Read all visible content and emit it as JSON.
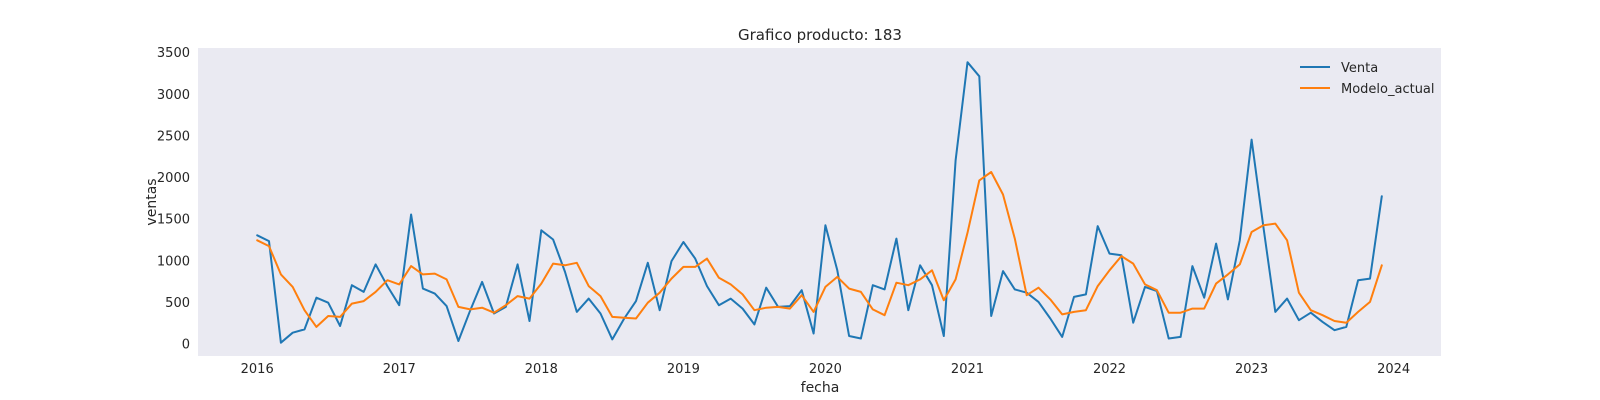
{
  "chart_data": {
    "type": "line",
    "title": "Grafico producto: 183",
    "xlabel": "fecha",
    "ylabel": "ventas",
    "x_ticks": [
      "2016",
      "2017",
      "2018",
      "2019",
      "2020",
      "2021",
      "2022",
      "2023",
      "2024"
    ],
    "y_ticks": [
      "0",
      "500",
      "1000",
      "1500",
      "2000",
      "2500",
      "3000",
      "3500"
    ],
    "xlim": [
      "2015-08-01",
      "2024-05-01"
    ],
    "ylim": [
      -150,
      3550
    ],
    "grid": false,
    "legend_position": "top-right",
    "x": [
      "2016-01",
      "2016-02",
      "2016-03",
      "2016-04",
      "2016-05",
      "2016-06",
      "2016-07",
      "2016-08",
      "2016-09",
      "2016-10",
      "2016-11",
      "2016-12",
      "2017-01",
      "2017-02",
      "2017-03",
      "2017-04",
      "2017-05",
      "2017-06",
      "2017-07",
      "2017-08",
      "2017-09",
      "2017-10",
      "2017-11",
      "2017-12",
      "2018-01",
      "2018-02",
      "2018-03",
      "2018-04",
      "2018-05",
      "2018-06",
      "2018-07",
      "2018-08",
      "2018-09",
      "2018-10",
      "2018-11",
      "2018-12",
      "2019-01",
      "2019-02",
      "2019-03",
      "2019-04",
      "2019-05",
      "2019-06",
      "2019-07",
      "2019-08",
      "2019-09",
      "2019-10",
      "2019-11",
      "2019-12",
      "2020-01",
      "2020-02",
      "2020-03",
      "2020-04",
      "2020-05",
      "2020-06",
      "2020-07",
      "2020-08",
      "2020-09",
      "2020-10",
      "2020-11",
      "2020-12",
      "2021-01",
      "2021-02",
      "2021-03",
      "2021-04",
      "2021-05",
      "2021-06",
      "2021-07",
      "2021-08",
      "2021-09",
      "2021-10",
      "2021-11",
      "2021-12",
      "2022-01",
      "2022-02",
      "2022-03",
      "2022-04",
      "2022-05",
      "2022-06",
      "2022-07",
      "2022-08",
      "2022-09",
      "2022-10",
      "2022-11",
      "2022-12",
      "2023-01",
      "2023-02",
      "2023-03",
      "2023-04",
      "2023-05",
      "2023-06",
      "2023-07",
      "2023-08",
      "2023-09",
      "2023-10",
      "2023-11",
      "2023-12"
    ],
    "series": [
      {
        "name": "Venta",
        "color": "#1f77b4",
        "values": [
          1300,
          1230,
          10,
          130,
          170,
          550,
          490,
          210,
          700,
          620,
          950,
          690,
          460,
          1550,
          660,
          600,
          450,
          30,
          400,
          740,
          360,
          440,
          950,
          270,
          1360,
          1250,
          860,
          380,
          540,
          360,
          50,
          300,
          510,
          970,
          400,
          990,
          1220,
          1020,
          690,
          460,
          540,
          420,
          230,
          670,
          440,
          450,
          640,
          120,
          1420,
          880,
          90,
          60,
          700,
          650,
          1260,
          400,
          940,
          700,
          90,
          2200,
          3380,
          3210,
          330,
          870,
          650,
          610,
          500,
          300,
          80,
          560,
          590,
          1410,
          1080,
          1060,
          250,
          680,
          630,
          60,
          80,
          930,
          550,
          1200,
          530,
          1240,
          2450,
          1400,
          380,
          540,
          280,
          370,
          260,
          160,
          200,
          760,
          780,
          1770
        ]
      },
      {
        "name": "Modelo_actual",
        "color": "#ff7f0e",
        "values": [
          1240,
          1170,
          830,
          680,
          400,
          200,
          330,
          320,
          480,
          510,
          620,
          760,
          710,
          930,
          830,
          840,
          770,
          440,
          410,
          430,
          370,
          460,
          570,
          540,
          720,
          960,
          940,
          970,
          690,
          570,
          320,
          310,
          300,
          490,
          610,
          780,
          920,
          920,
          1020,
          790,
          710,
          590,
          400,
          430,
          440,
          420,
          580,
          380,
          680,
          800,
          660,
          620,
          410,
          340,
          730,
          700,
          770,
          880,
          520,
          770,
          1330,
          1960,
          2060,
          1790,
          1260,
          580,
          670,
          530,
          350,
          380,
          400,
          690,
          880,
          1050,
          960,
          710,
          640,
          370,
          370,
          420,
          420,
          720,
          830,
          950,
          1340,
          1420,
          1440,
          1240,
          610,
          400,
          340,
          270,
          250,
          380,
          500,
          940
        ]
      }
    ]
  }
}
